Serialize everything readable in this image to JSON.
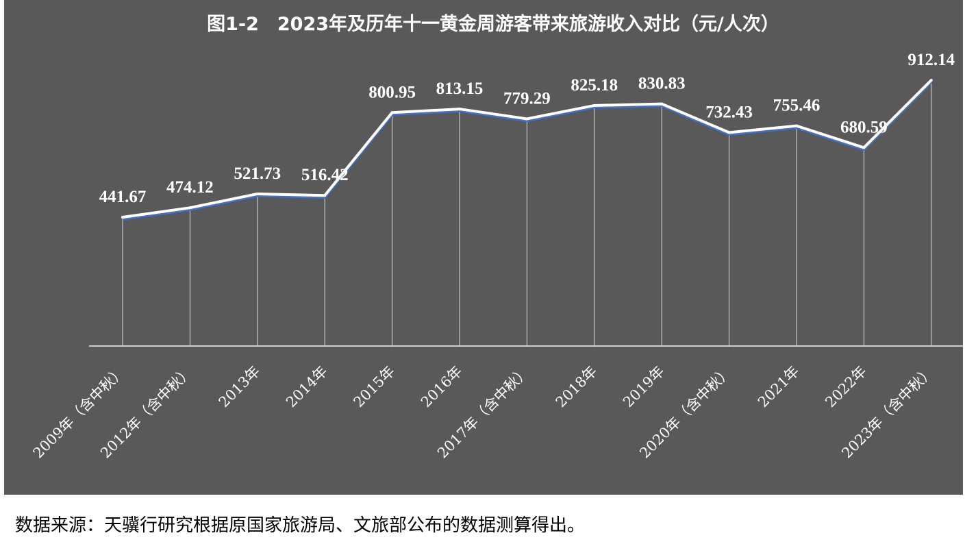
{
  "chart_data": {
    "type": "line",
    "title": "图1-2　2023年及历年十一黄金周游客带来旅游收入对比（元/人次）",
    "categories": [
      "2009年（含中秋）",
      "2012年（含中秋）",
      "2013年",
      "2014年",
      "2015年",
      "2016年",
      "2017年（含中秋）",
      "2018年",
      "2019年",
      "2020年（含中秋）",
      "2021年",
      "2022年",
      "2023年（含中秋）"
    ],
    "values": [
      441.67,
      474.12,
      521.73,
      516.42,
      800.95,
      813.15,
      779.29,
      825.18,
      830.83,
      732.43,
      755.46,
      680.59,
      912.14
    ],
    "value_labels": [
      "441.67",
      "474.12",
      "521.73",
      "516.42",
      "800.95",
      "813.15",
      "779.29",
      "825.18",
      "830.83",
      "732.43",
      "755.46",
      "680.59",
      "912.14"
    ],
    "ylim": [
      0,
      950
    ],
    "grid": false,
    "drop_lines": true,
    "colors": {
      "background": "#595959",
      "line": "#ffffff",
      "line_shadow": "#4472c4",
      "text": "#ffffff"
    }
  },
  "source_note": "数据来源：天骥行研究根据原国家旅游局、文旅部公布的数据测算得出。"
}
